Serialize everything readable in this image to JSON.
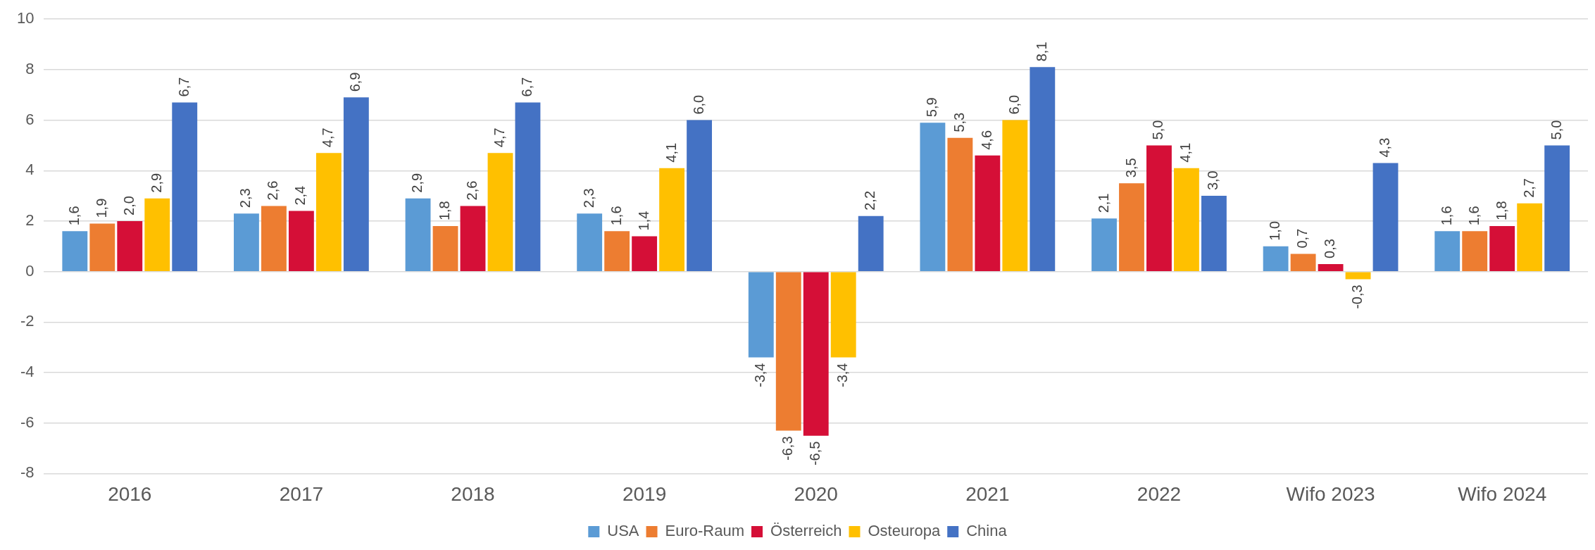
{
  "chart_data": {
    "type": "bar",
    "categories": [
      "2016",
      "2017",
      "2018",
      "2019",
      "2020",
      "2021",
      "2022",
      "Wifo 2023",
      "Wifo 2024"
    ],
    "series": [
      {
        "name": "USA",
        "color": "#5b9bd5",
        "values": [
          1.6,
          2.3,
          2.9,
          2.3,
          -3.4,
          5.9,
          2.1,
          1.0,
          1.6
        ],
        "value_labels": [
          "1,6",
          "2,3",
          "2,9",
          "2,3",
          "-3,4",
          "5,9",
          "2,1",
          "1,0",
          "1,6"
        ]
      },
      {
        "name": "Euro-Raum",
        "color": "#ed7d31",
        "values": [
          1.9,
          2.6,
          1.8,
          1.6,
          -6.3,
          5.3,
          3.5,
          0.7,
          1.6
        ],
        "value_labels": [
          "1,9",
          "2,6",
          "1,8",
          "1,6",
          "-6,3",
          "5,3",
          "3,5",
          "0,7",
          "1,6"
        ]
      },
      {
        "name": "Österreich",
        "color": "#d50f37",
        "values": [
          2.0,
          2.4,
          2.6,
          1.4,
          -6.5,
          4.6,
          5.0,
          0.3,
          1.8
        ],
        "value_labels": [
          "2,0",
          "2,4",
          "2,6",
          "1,4",
          "-6,5",
          "4,6",
          "5,0",
          "0,3",
          "1,8"
        ]
      },
      {
        "name": "Osteuropa",
        "color": "#ffc000",
        "values": [
          2.9,
          4.7,
          4.7,
          4.1,
          -3.4,
          6.0,
          4.1,
          -0.3,
          2.7
        ],
        "value_labels": [
          "2,9",
          "4,7",
          "4,7",
          "4,1",
          "-3,4",
          "6,0",
          "4,1",
          "-0,3",
          "2,7"
        ]
      },
      {
        "name": "China",
        "color": "#4472c4",
        "values": [
          6.7,
          6.9,
          6.7,
          6.0,
          2.2,
          8.1,
          3.0,
          4.3,
          5.0
        ],
        "value_labels": [
          "6,7",
          "6,9",
          "6,7",
          "6,0",
          "2,2",
          "8,1",
          "3,0",
          "4,3",
          "5,0"
        ]
      }
    ],
    "ylim": [
      -8,
      10
    ],
    "yticks": [
      -8,
      -6,
      -4,
      -2,
      0,
      2,
      4,
      6,
      8,
      10
    ],
    "grid": "y",
    "legend": "bottom"
  }
}
